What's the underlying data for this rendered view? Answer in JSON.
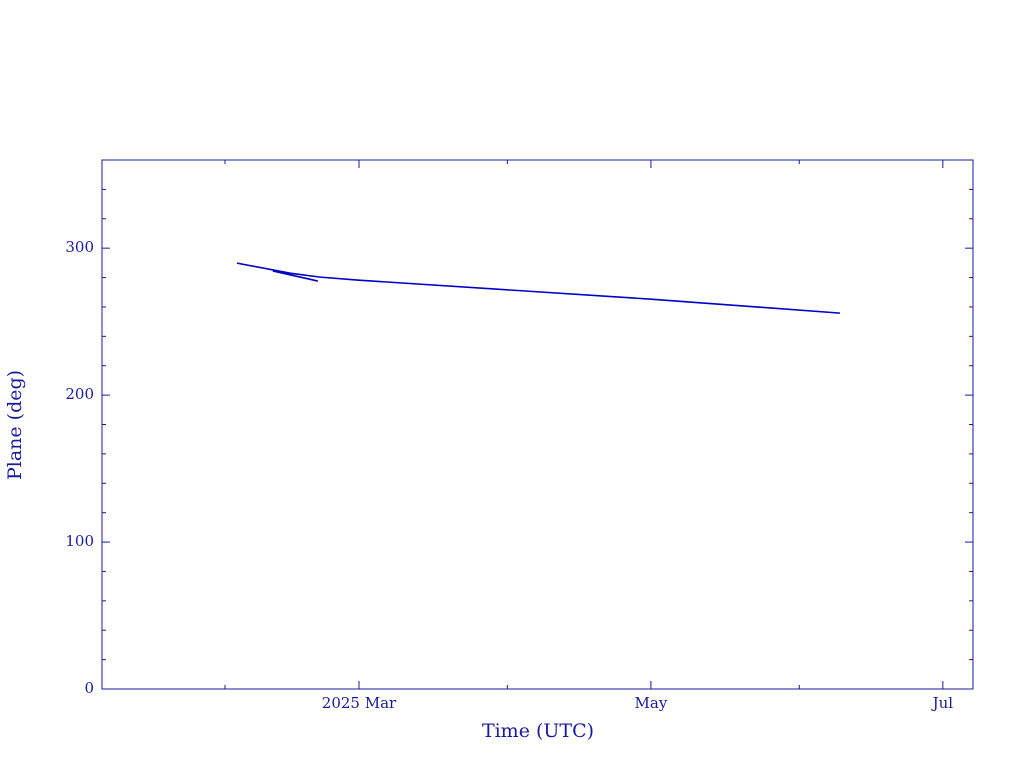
{
  "chart_data": {
    "type": "line",
    "xlabel": "Time (UTC)",
    "ylabel": "Plane (deg)",
    "x": [
      33.5,
      44.6,
      50.9,
      59,
      120,
      159.5,
      null,
      41,
      50.4
    ],
    "series": [
      {
        "color": "#0000c8",
        "values": [
          289.8,
          283.0,
          280.3,
          278.2,
          265.3,
          255.8,
          null,
          284.5,
          277.6
        ]
      }
    ],
    "xlim": [
      5.3,
      187.3
    ],
    "xticks": [
      {
        "value": 59,
        "label": "2025 Mar"
      },
      {
        "value": 120,
        "label": "May"
      },
      {
        "value": 181,
        "label": "Jul"
      }
    ],
    "xminorticks": [
      31,
      90,
      151
    ],
    "ylim": [
      0,
      360
    ],
    "yticks": [
      0,
      100,
      200,
      300
    ],
    "yminorticks": [
      20,
      40,
      60,
      80,
      120,
      140,
      160,
      180,
      220,
      240,
      260,
      280,
      320,
      340
    ],
    "grid": false
  }
}
